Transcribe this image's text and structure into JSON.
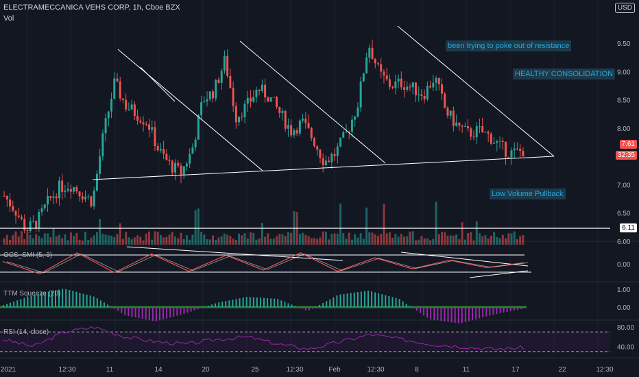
{
  "header": {
    "symbol_line": "ELECTRAMECCANICA VEHS CORP, 1h, Cboe BZX",
    "vol_label": "Vol",
    "currency": "USD"
  },
  "annotations": {
    "resistance": "been trying to poke out of resistance",
    "consolidation": "HEALTHY CONSOLIDATION",
    "pullback": "Low Volume Pullback"
  },
  "panes": {
    "smi": "OCS_SMI (5, 3)",
    "ttm": "TTM Squeeze (20)",
    "rsi": "RSI (14, close)"
  },
  "price_tags": {
    "last_price": "7.61",
    "countdown": "32:35",
    "level": "6.11"
  },
  "colors": {
    "up": "#26a69a",
    "down": "#ef5350",
    "background": "#131722",
    "trendline": "#ffffff",
    "rsi": "#9c27b0",
    "smi": "#ef5350",
    "annotation": "#2aa4d8"
  },
  "chart_data": {
    "type": "candlestick",
    "x_ticks": [
      "2021",
      "12:30",
      "11",
      "14",
      "20",
      "25",
      "12:30",
      "Feb",
      "12:30",
      "8",
      "11",
      "17",
      "22",
      "12:30"
    ],
    "price_axis": {
      "ticks": [
        "9.50",
        "9.00",
        "8.50",
        "8.00",
        "7.50",
        "7.00",
        "6.50",
        "6.00"
      ],
      "range": [
        5.9,
        9.9
      ]
    },
    "price_path": [
      6.8,
      6.55,
      6.2,
      6.35,
      6.7,
      6.95,
      7.0,
      6.85,
      6.7,
      7.9,
      8.8,
      8.4,
      8.25,
      8.1,
      7.6,
      7.35,
      7.2,
      7.6,
      8.5,
      8.65,
      9.2,
      8.2,
      8.4,
      8.7,
      8.55,
      8.25,
      7.95,
      8.1,
      7.8,
      7.4,
      7.55,
      7.9,
      8.4,
      9.5,
      8.95,
      8.75,
      8.8,
      8.7,
      8.6,
      8.9,
      8.3,
      8.05,
      7.9,
      7.95,
      7.85,
      7.65,
      7.55,
      7.6
    ],
    "level_line": 6.11,
    "volume": {
      "pattern": "low volume pullback",
      "relative_peaks": [
        0.3,
        0.5,
        0.7,
        0.45,
        0.6,
        0.9,
        1.0,
        0.4
      ]
    },
    "smi": {
      "ticks": [
        "0.00"
      ],
      "path": [
        0.2,
        -0.8,
        0.9,
        -0.7,
        0.8,
        -0.6,
        0.7,
        -0.5,
        0.9,
        -0.6,
        0.5,
        -0.4,
        0.3,
        -0.3,
        0.1
      ]
    },
    "ttm": {
      "ticks": [
        "1.00",
        "0.00"
      ],
      "hist": [
        0.1,
        0.6,
        0.9,
        0.5,
        -0.4,
        -0.7,
        -0.3,
        0.2,
        0.5,
        0.4,
        -0.2,
        0.6,
        0.8,
        0.4,
        -0.6,
        -0.8,
        -0.4,
        -0.1
      ]
    },
    "rsi": {
      "ticks": [
        "80.00",
        "40.00"
      ],
      "upper": 70,
      "lower": 30,
      "path": [
        55,
        40,
        70,
        80,
        60,
        50,
        45,
        55,
        60,
        45,
        35,
        50,
        65,
        55,
        45,
        40,
        35,
        38
      ]
    }
  }
}
